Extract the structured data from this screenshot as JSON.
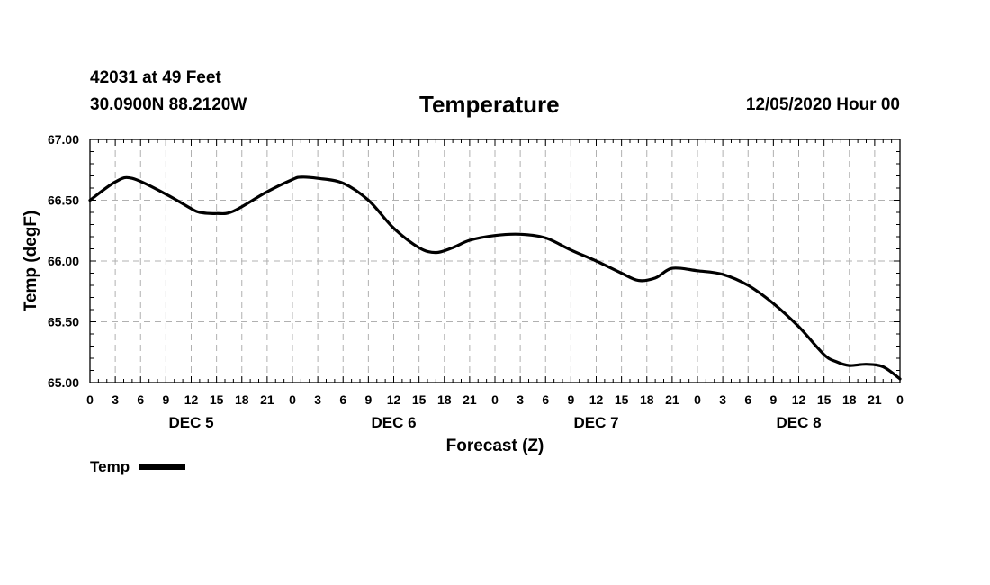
{
  "header": {
    "station": "42031 at 49 Feet",
    "coords": "30.0900N 88.2120W",
    "timestamp": "12/05/2020 Hour 00"
  },
  "chart_data": {
    "type": "line",
    "title": "Temperature",
    "xlabel": "Forecast (Z)",
    "ylabel": "Temp (degF)",
    "ylim": [
      65.0,
      67.0
    ],
    "yticks": [
      "65.00",
      "65.50",
      "66.00",
      "66.50",
      "67.00"
    ],
    "x_unit": "hours from 12/05/2020 00Z",
    "xlim": [
      0,
      96
    ],
    "x_tick_labels": [
      "0",
      "3",
      "6",
      "9",
      "12",
      "15",
      "18",
      "21",
      "0",
      "3",
      "6",
      "9",
      "12",
      "15",
      "18",
      "21",
      "0",
      "3",
      "6",
      "9",
      "12",
      "15",
      "18",
      "21",
      "0",
      "3",
      "6",
      "9",
      "12",
      "15",
      "18",
      "21",
      "0"
    ],
    "day_labels": [
      {
        "label": "DEC 5",
        "hour": 12
      },
      {
        "label": "DEC 6",
        "hour": 36
      },
      {
        "label": "DEC 7",
        "hour": 60
      },
      {
        "label": "DEC 8",
        "hour": 84
      }
    ],
    "grid": true,
    "legend": "bottom-left",
    "series": [
      {
        "name": "Temp",
        "color": "#000000",
        "points": [
          [
            0,
            66.5
          ],
          [
            3,
            66.65
          ],
          [
            5,
            66.68
          ],
          [
            9,
            66.55
          ],
          [
            12,
            66.43
          ],
          [
            13,
            66.4
          ],
          [
            15,
            66.39
          ],
          [
            17,
            66.41
          ],
          [
            21,
            66.57
          ],
          [
            24,
            66.67
          ],
          [
            25,
            66.69
          ],
          [
            27,
            66.68
          ],
          [
            30,
            66.64
          ],
          [
            33,
            66.5
          ],
          [
            36,
            66.27
          ],
          [
            39,
            66.11
          ],
          [
            41,
            66.07
          ],
          [
            43,
            66.11
          ],
          [
            45,
            66.17
          ],
          [
            48,
            66.21
          ],
          [
            51,
            66.22
          ],
          [
            54,
            66.19
          ],
          [
            57,
            66.09
          ],
          [
            60,
            66.0
          ],
          [
            63,
            65.9
          ],
          [
            65,
            65.84
          ],
          [
            67,
            65.86
          ],
          [
            69,
            65.94
          ],
          [
            72,
            65.92
          ],
          [
            75,
            65.89
          ],
          [
            78,
            65.8
          ],
          [
            81,
            65.65
          ],
          [
            84,
            65.46
          ],
          [
            87,
            65.23
          ],
          [
            88.5,
            65.17
          ],
          [
            90,
            65.14
          ],
          [
            92,
            65.15
          ],
          [
            94,
            65.13
          ],
          [
            96,
            65.03
          ]
        ]
      }
    ]
  },
  "legend": {
    "label": "Temp"
  }
}
